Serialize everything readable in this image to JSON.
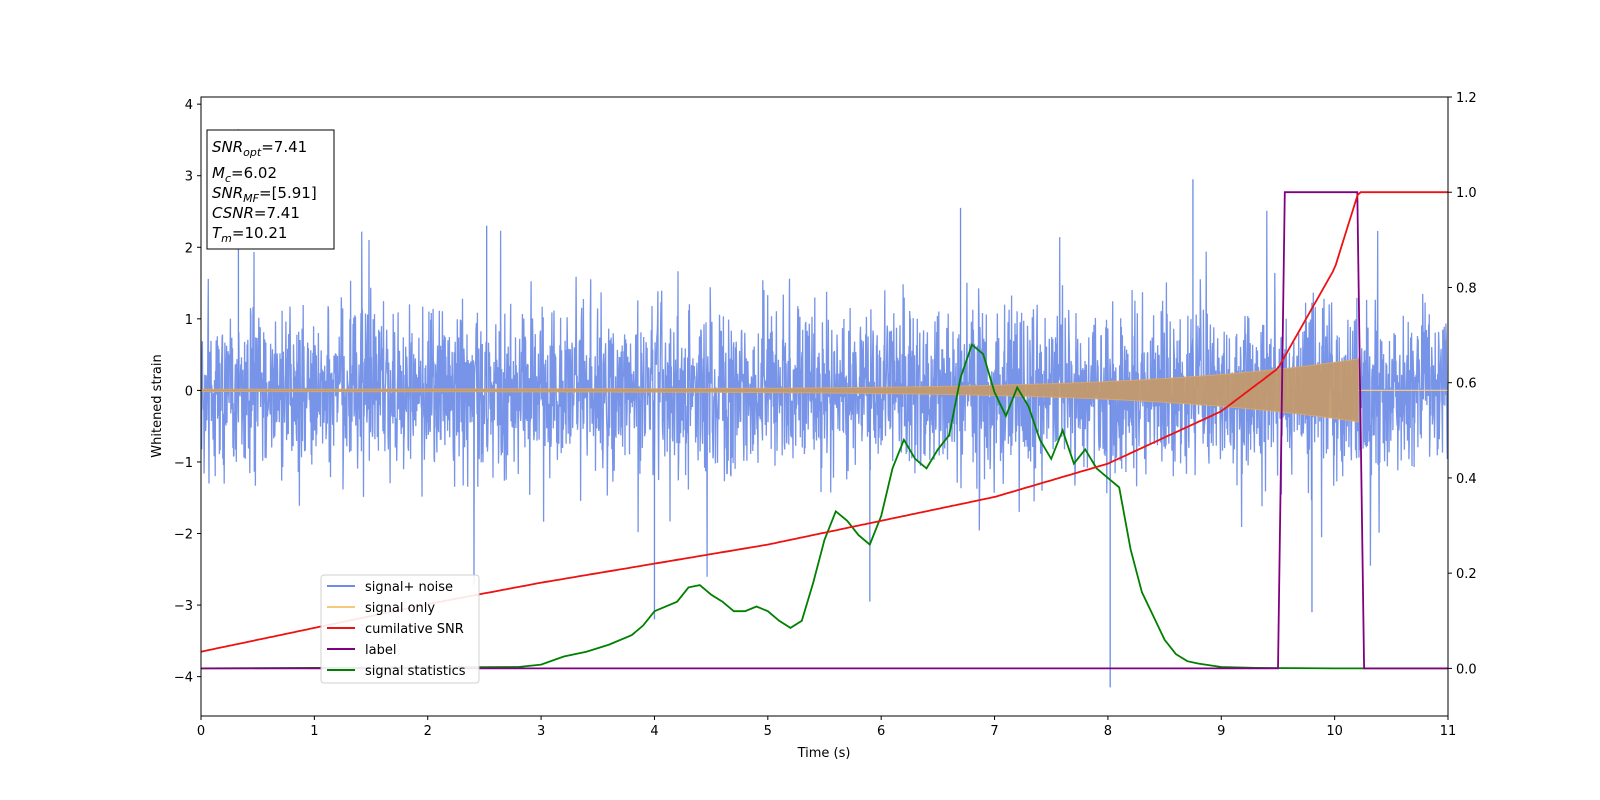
{
  "chart_data": {
    "type": "line",
    "xlabel": "Time (s)",
    "ylabel": "Whitened strain",
    "xlim": [
      0,
      11
    ],
    "ylim_left": [
      -4.55,
      4.1
    ],
    "ylim_right": [
      -0.1,
      1.2
    ],
    "xticks": [
      "0",
      "1",
      "2",
      "3",
      "4",
      "5",
      "6",
      "7",
      "8",
      "9",
      "10",
      "11"
    ],
    "yticks_left": [
      "4",
      "3",
      "2",
      "1",
      "0",
      "−1",
      "−2",
      "−3",
      "−4"
    ],
    "yticks_right": [
      "1.2",
      "1.0",
      "0.8",
      "0.6",
      "0.4",
      "0.2",
      "0.0"
    ],
    "annotation": [
      {
        "sym": "SNR",
        "sub": "opt",
        "value": "=7.41"
      },
      {
        "sym": "M",
        "sub": "c",
        "value": "=6.02"
      },
      {
        "sym": "SNR",
        "sub": "MF",
        "value": "=[5.91]"
      },
      {
        "sym": "CSNR",
        "sub": "",
        "value": "=7.41"
      },
      {
        "sym": "T",
        "sub": "m",
        "value": "=10.21"
      }
    ],
    "legend_position": "lower-left",
    "series": [
      {
        "name": "signal+ noise",
        "color": "#6b8be6",
        "axis": "left",
        "description_values": {
          "mean": 0,
          "typical_range": [
            -1.6,
            1.6
          ],
          "extremes": [
            -4.15,
            3.65
          ]
        }
      },
      {
        "name": "signal only",
        "color": "#f5c97a",
        "axis": "left",
        "chirp": {
          "amplitude_end": 0.42,
          "t_end": 10.21
        }
      },
      {
        "name": "cumilative SNR",
        "color": "#ee1111",
        "axis": "right",
        "x": [
          0,
          1,
          2,
          3,
          4,
          5,
          6,
          7,
          8,
          9,
          9.5,
          10,
          10.21,
          11
        ],
        "y": [
          0.035,
          0.085,
          0.135,
          0.18,
          0.22,
          0.26,
          0.31,
          0.36,
          0.43,
          0.54,
          0.63,
          0.84,
          1.0,
          1.0
        ]
      },
      {
        "name": "label",
        "color": "#800080",
        "axis": "right",
        "x": [
          0,
          9.5,
          9.56,
          10.2,
          10.26,
          11
        ],
        "y": [
          0,
          0,
          1,
          1,
          0,
          0
        ]
      },
      {
        "name": "signal statistics",
        "color": "#008000",
        "axis": "right",
        "x": [
          0,
          1,
          2,
          2.8,
          3.0,
          3.2,
          3.4,
          3.6,
          3.8,
          3.9,
          4.0,
          4.2,
          4.3,
          4.4,
          4.5,
          4.6,
          4.7,
          4.8,
          4.9,
          5.0,
          5.1,
          5.2,
          5.3,
          5.4,
          5.5,
          5.6,
          5.7,
          5.8,
          5.9,
          6.0,
          6.1,
          6.2,
          6.3,
          6.4,
          6.5,
          6.6,
          6.7,
          6.8,
          6.9,
          7.0,
          7.1,
          7.2,
          7.3,
          7.4,
          7.5,
          7.6,
          7.7,
          7.8,
          7.9,
          8.0,
          8.1,
          8.2,
          8.3,
          8.4,
          8.5,
          8.6,
          8.7,
          8.8,
          9.0,
          9.3,
          10,
          11
        ],
        "y": [
          0,
          0.001,
          0.002,
          0.003,
          0.008,
          0.025,
          0.035,
          0.05,
          0.07,
          0.09,
          0.12,
          0.14,
          0.17,
          0.175,
          0.155,
          0.14,
          0.12,
          0.12,
          0.13,
          0.12,
          0.1,
          0.085,
          0.1,
          0.18,
          0.27,
          0.33,
          0.31,
          0.28,
          0.26,
          0.32,
          0.42,
          0.48,
          0.44,
          0.42,
          0.46,
          0.49,
          0.61,
          0.68,
          0.66,
          0.58,
          0.53,
          0.59,
          0.55,
          0.48,
          0.44,
          0.5,
          0.43,
          0.46,
          0.42,
          0.4,
          0.38,
          0.25,
          0.16,
          0.11,
          0.06,
          0.03,
          0.015,
          0.01,
          0.003,
          0.001,
          0.0,
          0.0
        ]
      }
    ]
  }
}
